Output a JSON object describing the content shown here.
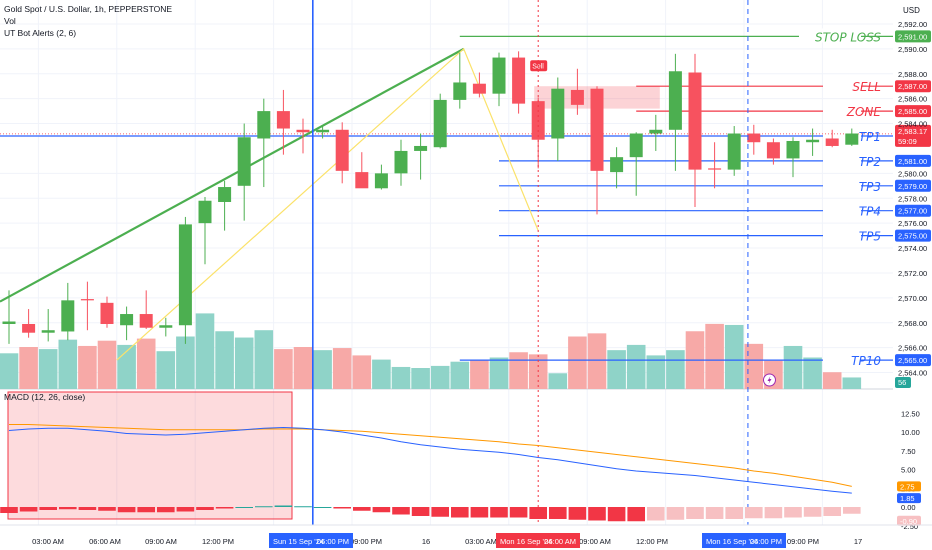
{
  "legend": {
    "title": "Gold Spot / U.S. Dollar, 1h, PEPPERSTONE",
    "vol": "Vol",
    "ut_bot": "UT Bot Alerts (2, 6)",
    "macd": "MACD (12, 26, close)"
  },
  "currency": "USD",
  "price_axis": {
    "ticks": [
      "2,592.00",
      "2,590.00",
      "2,588.00",
      "2,586.00",
      "2,584.00",
      "2,580.00",
      "2,578.00",
      "2,576.00",
      "2,574.00",
      "2,572.00",
      "2,570.00",
      "2,568.00",
      "2,566.00",
      "2,564.00"
    ]
  },
  "macd_axis": {
    "ticks": [
      "12.50",
      "10.00",
      "7.50",
      "5.00",
      "2.50",
      "0.00",
      "-2.50"
    ]
  },
  "time_axis": {
    "ticks": [
      "03:00 AM",
      "06:00 AM",
      "09:00 AM",
      "12:00 PM",
      "09:00 PM",
      "16",
      "03:00 AM",
      "09:00 AM",
      "12:00 PM",
      "09:00 PM",
      "17"
    ],
    "highlight_1": "Sun 15 Sep '24",
    "highlight_1_time": "06:00 PM",
    "highlight_2": "Mon 16 Sep '24",
    "highlight_2_time": "06:00 AM",
    "highlight_3": "Mon 16 Sep '24",
    "highlight_3_time": "06:00 PM"
  },
  "levels": [
    {
      "name": "STOP LOSS",
      "price": "2,591.00",
      "color": "#4caf50"
    },
    {
      "name": "SELL",
      "price": "2,587.00",
      "color": "#f23645"
    },
    {
      "name": "ZONE",
      "price": "2,585.00",
      "color": "#f23645"
    },
    {
      "name": "TP1",
      "price": "2,583.00",
      "color": "#2962ff"
    },
    {
      "name": "TP2",
      "price": "2,581.00",
      "color": "#2962ff"
    },
    {
      "name": "TP3",
      "price": "2,579.00",
      "color": "#2962ff"
    },
    {
      "name": "TP4",
      "price": "2,577.00",
      "color": "#2962ff"
    },
    {
      "name": "TP5",
      "price": "2,575.00",
      "color": "#2962ff"
    },
    {
      "name": "TP10",
      "price": "2,565.00",
      "color": "#2962ff"
    }
  ],
  "current_price": {
    "price": "2,583.17",
    "countdown": "59:09",
    "color": "#f23645"
  },
  "volume_value": "56",
  "sell_signal": "Sell",
  "macd_values": {
    "signal": "2.75",
    "macd": "1.85",
    "hist": "-0.90"
  },
  "colors": {
    "up": "#4caf50",
    "down": "#f7525f",
    "vol_up": "#8fd3c8",
    "vol_down": "#f7a9a7",
    "blue": "#2962ff"
  },
  "chart_data": {
    "type": "candlestick",
    "title": "Gold Spot / U.S. Dollar, 1h, PEPPERSTONE",
    "candles": [
      {
        "o": 2567.9,
        "h": 2570.6,
        "l": 2566.3,
        "c": 2568.1
      },
      {
        "o": 2567.9,
        "h": 2569.1,
        "l": 2566.8,
        "c": 2567.2
      },
      {
        "o": 2567.2,
        "h": 2569.1,
        "l": 2566.5,
        "c": 2567.4
      },
      {
        "o": 2567.3,
        "h": 2571.2,
        "l": 2566.6,
        "c": 2569.8
      },
      {
        "o": 2569.9,
        "h": 2571.3,
        "l": 2567.4,
        "c": 2569.8
      },
      {
        "o": 2569.6,
        "h": 2570.1,
        "l": 2567.6,
        "c": 2567.9
      },
      {
        "o": 2567.8,
        "h": 2569.3,
        "l": 2566.6,
        "c": 2568.7
      },
      {
        "o": 2568.7,
        "h": 2570.6,
        "l": 2567.5,
        "c": 2567.6
      },
      {
        "o": 2567.6,
        "h": 2568.4,
        "l": 2566.9,
        "c": 2567.8
      },
      {
        "o": 2567.8,
        "h": 2576.5,
        "l": 2566.3,
        "c": 2575.9
      },
      {
        "o": 2576.0,
        "h": 2578.1,
        "l": 2572.7,
        "c": 2577.8
      },
      {
        "o": 2577.7,
        "h": 2579.4,
        "l": 2575.4,
        "c": 2578.9
      },
      {
        "o": 2579.0,
        "h": 2584.0,
        "l": 2576.2,
        "c": 2582.9
      },
      {
        "o": 2582.8,
        "h": 2586.0,
        "l": 2578.9,
        "c": 2585.0
      },
      {
        "o": 2585.0,
        "h": 2586.7,
        "l": 2581.5,
        "c": 2583.6
      },
      {
        "o": 2583.5,
        "h": 2584.4,
        "l": 2581.6,
        "c": 2583.3
      },
      {
        "o": 2583.3,
        "h": 2583.8,
        "l": 2582.8,
        "c": 2583.5
      },
      {
        "o": 2583.5,
        "h": 2584.1,
        "l": 2579.2,
        "c": 2580.2
      },
      {
        "o": 2580.1,
        "h": 2581.7,
        "l": 2578.9,
        "c": 2578.8
      },
      {
        "o": 2578.8,
        "h": 2580.7,
        "l": 2578.7,
        "c": 2580.0
      },
      {
        "o": 2580.0,
        "h": 2582.7,
        "l": 2579.0,
        "c": 2581.8
      },
      {
        "o": 2581.8,
        "h": 2583.2,
        "l": 2579.5,
        "c": 2582.2
      },
      {
        "o": 2582.1,
        "h": 2586.4,
        "l": 2582.0,
        "c": 2585.9
      },
      {
        "o": 2585.9,
        "h": 2589.7,
        "l": 2585.2,
        "c": 2587.3
      },
      {
        "o": 2587.2,
        "h": 2588.1,
        "l": 2586.1,
        "c": 2586.4
      },
      {
        "o": 2586.4,
        "h": 2589.7,
        "l": 2585.4,
        "c": 2589.3
      },
      {
        "o": 2589.3,
        "h": 2589.8,
        "l": 2584.8,
        "c": 2585.6
      },
      {
        "o": 2585.8,
        "h": 2586.1,
        "l": 2580.4,
        "c": 2582.7
      },
      {
        "o": 2582.8,
        "h": 2587.7,
        "l": 2581.0,
        "c": 2586.8
      },
      {
        "o": 2586.7,
        "h": 2588.4,
        "l": 2584.7,
        "c": 2585.5
      },
      {
        "o": 2586.8,
        "h": 2587.0,
        "l": 2576.7,
        "c": 2580.2
      },
      {
        "o": 2580.1,
        "h": 2582.1,
        "l": 2578.8,
        "c": 2581.3
      },
      {
        "o": 2581.3,
        "h": 2583.3,
        "l": 2578.2,
        "c": 2583.2
      },
      {
        "o": 2583.2,
        "h": 2584.7,
        "l": 2581.8,
        "c": 2583.5
      },
      {
        "o": 2583.5,
        "h": 2589.6,
        "l": 2580.2,
        "c": 2588.2
      },
      {
        "o": 2588.1,
        "h": 2589.6,
        "l": 2577.3,
        "c": 2580.3
      },
      {
        "o": 2580.4,
        "h": 2582.5,
        "l": 2578.8,
        "c": 2580.3
      },
      {
        "o": 2580.3,
        "h": 2583.8,
        "l": 2579.8,
        "c": 2583.2
      },
      {
        "o": 2583.2,
        "h": 2583.9,
        "l": 2581.5,
        "c": 2582.5
      },
      {
        "o": 2582.5,
        "h": 2582.8,
        "l": 2580.7,
        "c": 2581.2
      },
      {
        "o": 2581.2,
        "h": 2582.9,
        "l": 2579.7,
        "c": 2582.6
      },
      {
        "o": 2582.5,
        "h": 2583.6,
        "l": 2581.4,
        "c": 2582.7
      },
      {
        "o": 2582.8,
        "h": 2583.5,
        "l": 2582.1,
        "c": 2582.2
      },
      {
        "o": 2582.3,
        "h": 2583.6,
        "l": 2582.2,
        "c": 2583.2
      }
    ],
    "volume_series": [
      34,
      40,
      38,
      47,
      41,
      46,
      42,
      48,
      36,
      50,
      72,
      55,
      49,
      56,
      38,
      40,
      37,
      39,
      32,
      28,
      21,
      20,
      22,
      26,
      28,
      30,
      35,
      33,
      15,
      50,
      53,
      37,
      42,
      32,
      37,
      55,
      62,
      61,
      43,
      27,
      41,
      30,
      16,
      11
    ],
    "macd_series": {
      "macd": [
        10.2,
        10.4,
        10.5,
        10.5,
        10.3,
        10.1,
        9.8,
        9.7,
        9.6,
        9.7,
        9.9,
        10.1,
        10.3,
        10.5,
        10.6,
        10.5,
        10.3,
        10.0,
        9.6,
        9.2,
        8.7,
        8.3,
        8.0,
        7.7,
        7.5,
        7.3,
        7.0,
        6.6,
        6.3,
        5.9,
        5.5,
        5.1,
        4.8,
        4.6,
        4.4,
        4.2,
        3.9,
        3.6,
        3.3,
        3.0,
        2.7,
        2.4,
        2.1,
        1.85
      ],
      "signal": [
        11.0,
        11.0,
        10.9,
        10.8,
        10.7,
        10.6,
        10.5,
        10.4,
        10.3,
        10.3,
        10.3,
        10.3,
        10.3,
        10.4,
        10.4,
        10.4,
        10.3,
        10.2,
        10.1,
        9.9,
        9.7,
        9.5,
        9.3,
        9.1,
        8.9,
        8.7,
        8.4,
        8.2,
        7.9,
        7.6,
        7.3,
        7.0,
        6.7,
        6.4,
        6.1,
        5.8,
        5.5,
        5.2,
        4.8,
        4.5,
        4.1,
        3.7,
        3.3,
        2.75
      ],
      "hist": [
        -0.8,
        -0.6,
        -0.4,
        -0.3,
        -0.4,
        -0.5,
        -0.7,
        -0.7,
        -0.7,
        -0.6,
        -0.4,
        -0.2,
        0,
        0.1,
        0.2,
        0.1,
        0,
        -0.2,
        -0.5,
        -0.7,
        -1.0,
        -1.2,
        -1.3,
        -1.4,
        -1.4,
        -1.4,
        -1.4,
        -1.6,
        -1.6,
        -1.7,
        -1.8,
        -1.9,
        -1.9,
        -1.8,
        -1.7,
        -1.6,
        -1.6,
        -1.6,
        -1.5,
        -1.5,
        -1.4,
        -1.3,
        -1.2,
        -0.9
      ]
    }
  }
}
